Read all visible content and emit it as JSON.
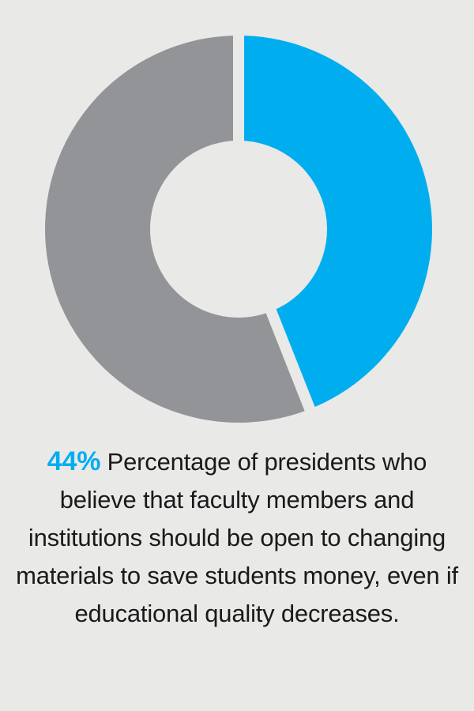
{
  "chart_data": {
    "type": "pie",
    "donut": true,
    "categories": [
      "",
      ""
    ],
    "values": [
      44,
      56
    ],
    "colors": [
      "#00aeef",
      "#929497"
    ],
    "title": "",
    "legend": "none"
  },
  "caption": {
    "percent": "44%",
    "text": " Percentage of presidents who believe that faculty members and institutions should be open to changing materials to save students money, even if educational quality decreases."
  },
  "background": "#e9e9e8"
}
